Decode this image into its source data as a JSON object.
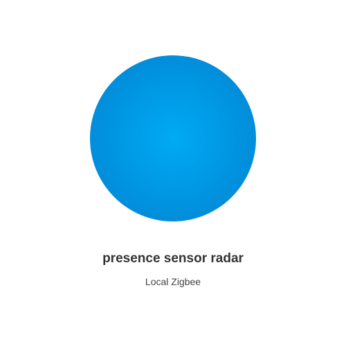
{
  "device": {
    "name": "presence sensor radar",
    "subtitle": "Local Zigbee",
    "image_icon": "circle-device-icon",
    "colors": {
      "accent": "#0094e0",
      "highlight": "#00aaf4",
      "title_text": "#333333",
      "subtitle_text": "#444444",
      "background": "#ffffff"
    }
  }
}
